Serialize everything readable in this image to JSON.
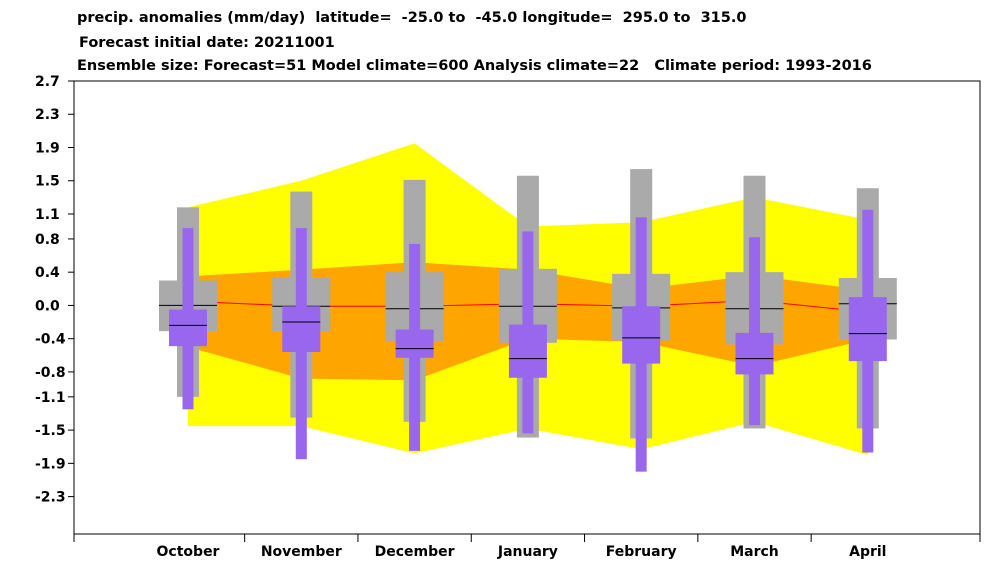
{
  "title": {
    "line1": "precip. anomalies (mm/day)  latitude=  -25.0 to  -45.0 longitude=  295.0 to  315.0",
    "line2": "Forecast initial date: 20211001",
    "line3": "Ensemble size: Forecast=51 Model climate=600 Analysis climate=22   Climate period: 1993-2016"
  },
  "colors": {
    "outer_band": "#ffff00",
    "inner_band": "#ffa500",
    "climate_box": "#aaaaaa",
    "forecast_box": "#9966ee",
    "forecast_mean_line": "#ff0000",
    "median": "#000000"
  },
  "chart_data": {
    "type": "box",
    "categories": [
      "October",
      "November",
      "December",
      "January",
      "February",
      "March",
      "April"
    ],
    "yticks": [
      2.7,
      2.3,
      1.9,
      1.5,
      1.1,
      0.8,
      0.4,
      0.0,
      -0.4,
      -0.8,
      -1.1,
      -1.5,
      -1.9,
      -2.3
    ],
    "ytick_labels": [
      "2.7",
      "2.3",
      "1.9",
      "1.5",
      "1.1",
      "0.8",
      "0.4",
      "0.0",
      "-0.4",
      "-0.8",
      "-1.1",
      "-1.5",
      "-1.9",
      "-2.3"
    ],
    "ylim": [
      -2.75,
      2.7
    ],
    "outer_band": {
      "upper": [
        1.18,
        1.5,
        1.95,
        0.95,
        1.0,
        1.3,
        1.03
      ],
      "lower": [
        -1.45,
        -1.45,
        -1.78,
        -1.48,
        -1.73,
        -1.4,
        -1.8
      ]
    },
    "inner_band": {
      "upper": [
        0.35,
        0.43,
        0.52,
        0.43,
        0.2,
        0.36,
        0.18
      ],
      "lower": [
        -0.5,
        -0.88,
        -0.9,
        -0.4,
        -0.44,
        -0.73,
        -0.41
      ]
    },
    "forecast_mean": [
      0.05,
      -0.01,
      -0.01,
      0.02,
      -0.01,
      0.06,
      -0.08
    ],
    "climate_boxes": [
      {
        "whisker_low": -1.1,
        "q1": -0.31,
        "median": 0.0,
        "q3": 0.3,
        "whisker_high": 1.18
      },
      {
        "whisker_low": -1.35,
        "q1": -0.31,
        "median": -0.01,
        "q3": 0.34,
        "whisker_high": 1.37
      },
      {
        "whisker_low": -1.4,
        "q1": -0.43,
        "median": -0.04,
        "q3": 0.4,
        "whisker_high": 1.51
      },
      {
        "whisker_low": -1.59,
        "q1": -0.45,
        "median": -0.01,
        "q3": 0.44,
        "whisker_high": 1.56
      },
      {
        "whisker_low": -1.6,
        "q1": -0.42,
        "median": -0.03,
        "q3": 0.38,
        "whisker_high": 1.64
      },
      {
        "whisker_low": -1.48,
        "q1": -0.47,
        "median": -0.04,
        "q3": 0.4,
        "whisker_high": 1.56
      },
      {
        "whisker_low": -1.48,
        "q1": -0.41,
        "median": 0.02,
        "q3": 0.33,
        "whisker_high": 1.41
      }
    ],
    "forecast_boxes": [
      {
        "whisker_low": -1.25,
        "q1": -0.49,
        "median": -0.24,
        "q3": -0.05,
        "whisker_high": 0.93
      },
      {
        "whisker_low": -1.85,
        "q1": -0.56,
        "median": -0.2,
        "q3": -0.01,
        "whisker_high": 0.93
      },
      {
        "whisker_low": -1.75,
        "q1": -0.63,
        "median": -0.52,
        "q3": -0.29,
        "whisker_high": 0.74
      },
      {
        "whisker_low": -1.54,
        "q1": -0.87,
        "median": -0.64,
        "q3": -0.23,
        "whisker_high": 0.89
      },
      {
        "whisker_low": -2.0,
        "q1": -0.7,
        "median": -0.39,
        "q3": -0.01,
        "whisker_high": 1.06
      },
      {
        "whisker_low": -1.44,
        "q1": -0.83,
        "median": -0.64,
        "q3": -0.33,
        "whisker_high": 0.82
      },
      {
        "whisker_low": -1.77,
        "q1": -0.67,
        "median": -0.34,
        "q3": 0.1,
        "whisker_high": 1.15
      }
    ]
  }
}
